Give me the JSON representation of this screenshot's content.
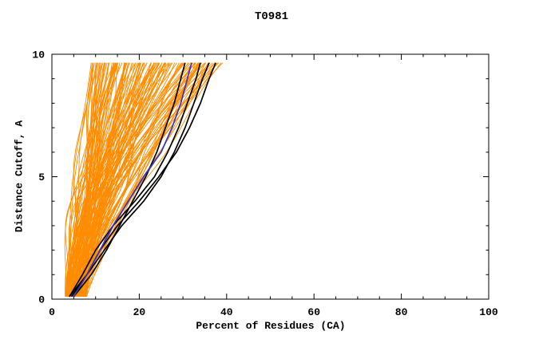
{
  "title": "T0981",
  "chart_data": {
    "type": "line",
    "title": "T0981",
    "xlabel": "Percent of Residues (CA)",
    "ylabel": "Distance Cutoff, A",
    "xlim": [
      0,
      100
    ],
    "ylim": [
      0,
      10
    ],
    "x_ticks": [
      0,
      20,
      40,
      60,
      80,
      100
    ],
    "y_ticks": [
      0,
      5,
      10
    ],
    "x_minor_step": 5,
    "y_minor_step": 1,
    "grid": false,
    "legend": "none",
    "ensemble": {
      "name": "server-model-curves",
      "color": "#ff8c00",
      "count": 135,
      "seed": 12,
      "start_percent_min": 3,
      "start_percent_max": 8,
      "top_percent_min": 9,
      "top_percent_max": 40,
      "cutoff_min": 0.1,
      "cutoff_max": 9.65,
      "line_width": 0.9
    },
    "series": [
      {
        "name": "model-black-1",
        "color": "#000000",
        "width": 1.7,
        "points": [
          [
            4,
            0.1
          ],
          [
            7,
            1
          ],
          [
            10,
            2
          ],
          [
            14,
            3
          ],
          [
            19,
            4
          ],
          [
            23.5,
            5
          ],
          [
            26.5,
            6
          ],
          [
            29,
            7
          ],
          [
            31,
            8
          ],
          [
            33,
            9
          ],
          [
            34,
            9.65
          ]
        ]
      },
      {
        "name": "model-black-2",
        "color": "#000000",
        "width": 1.7,
        "points": [
          [
            4.5,
            0.1
          ],
          [
            8,
            1
          ],
          [
            12,
            2
          ],
          [
            16,
            3
          ],
          [
            21,
            4
          ],
          [
            25,
            5
          ],
          [
            28,
            6
          ],
          [
            30.5,
            7
          ],
          [
            32.5,
            8
          ],
          [
            34.5,
            9
          ],
          [
            36,
            9.65
          ]
        ]
      },
      {
        "name": "model-black-3",
        "color": "#000000",
        "width": 1.7,
        "points": [
          [
            4,
            0.1
          ],
          [
            8,
            1
          ],
          [
            11,
            2
          ],
          [
            15,
            3
          ],
          [
            20,
            4
          ],
          [
            24.5,
            5
          ],
          [
            28.5,
            6
          ],
          [
            31.5,
            7
          ],
          [
            34,
            8
          ],
          [
            36,
            9
          ],
          [
            37.5,
            9.65
          ]
        ]
      },
      {
        "name": "model-black-4",
        "color": "#000000",
        "width": 1.7,
        "points": [
          [
            5,
            0.1
          ],
          [
            9,
            1
          ],
          [
            12.5,
            2
          ],
          [
            15.5,
            3
          ],
          [
            18.5,
            4
          ],
          [
            21.5,
            5
          ],
          [
            24,
            6
          ],
          [
            26,
            7
          ],
          [
            28,
            8
          ],
          [
            29.5,
            9
          ],
          [
            30.5,
            9.65
          ]
        ]
      },
      {
        "name": "model-blue",
        "color": "#3333cc",
        "width": 1.7,
        "points": [
          [
            5,
            0.1
          ],
          [
            8,
            1
          ],
          [
            11,
            2
          ],
          [
            14,
            3
          ],
          [
            17.5,
            4
          ],
          [
            21,
            5
          ],
          [
            25,
            6
          ],
          [
            27.5,
            7
          ],
          [
            29.5,
            8
          ],
          [
            31,
            9
          ],
          [
            32,
            9.65
          ]
        ]
      }
    ]
  },
  "colors": {
    "ensemble": "#ff8c00",
    "highlight": "#000000",
    "selected": "#3333cc",
    "background": "#ffffff",
    "frame": "#000000"
  }
}
